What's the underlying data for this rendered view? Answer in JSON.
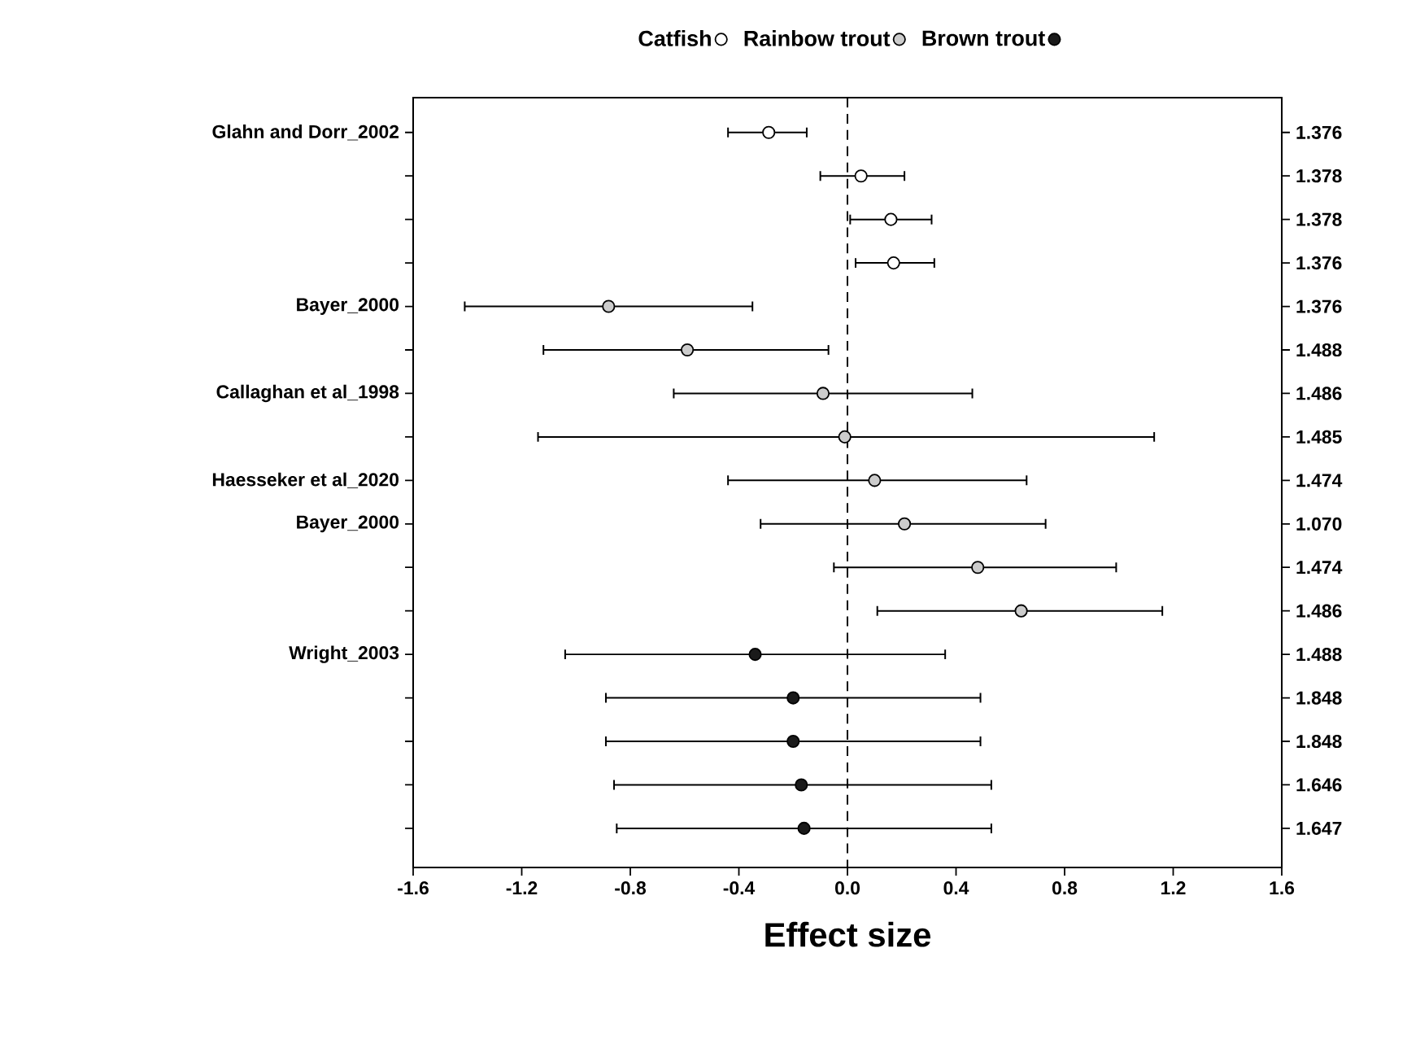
{
  "chart_data": {
    "type": "scatter",
    "orientation": "horizontal",
    "xlabel": "Effect size",
    "categories": [
      "Glahn and Dorr_2002",
      null,
      null,
      null,
      "Bayer_2000",
      null,
      "Callaghan et al_1998",
      null,
      "Haesseker et al_2020",
      "Bayer_2000",
      null,
      null,
      "Wright_2003",
      null,
      null,
      null,
      null
    ],
    "y2_categories": [
      "1.376",
      "1.378",
      "1.378",
      "1.376",
      "1.376",
      "1.488",
      "1.486",
      "1.485",
      "1.474",
      "1.070",
      "1.474",
      "1.486",
      "1.488",
      "1.848",
      "1.848",
      "1.646",
      "1.647"
    ],
    "series": [
      {
        "name": "Catfish",
        "color": "#ffffff",
        "values": [
          -0.29,
          0.05,
          0.16,
          0.17,
          null,
          null,
          null,
          null,
          null,
          null,
          null,
          null,
          null,
          null,
          null,
          null,
          null
        ],
        "errors": [
          [
            -0.44,
            -0.15
          ],
          [
            -0.1,
            0.21
          ],
          [
            0.01,
            0.31
          ],
          [
            0.03,
            0.32
          ],
          null,
          null,
          null,
          null,
          null,
          null,
          null,
          null,
          null,
          null,
          null,
          null,
          null
        ]
      },
      {
        "name": "Rainbow trout",
        "color": "#cccccc",
        "values": [
          null,
          null,
          null,
          null,
          -0.88,
          -0.59,
          -0.09,
          -0.01,
          0.1,
          0.21,
          0.48,
          0.64,
          null,
          null,
          null,
          null,
          null
        ],
        "errors": [
          null,
          null,
          null,
          null,
          [
            -1.41,
            -0.35
          ],
          [
            -1.12,
            -0.07
          ],
          [
            -0.64,
            0.46
          ],
          [
            -1.14,
            1.13
          ],
          [
            -0.44,
            0.66
          ],
          [
            -0.32,
            0.73
          ],
          [
            -0.05,
            0.99
          ],
          [
            0.11,
            1.16
          ],
          null,
          null,
          null,
          null,
          null
        ]
      },
      {
        "name": "Brown trout",
        "color": "#1a1a1a",
        "values": [
          null,
          null,
          null,
          null,
          null,
          null,
          null,
          null,
          null,
          null,
          null,
          null,
          -0.34,
          -0.2,
          -0.2,
          -0.17,
          -0.16
        ],
        "errors": [
          null,
          null,
          null,
          null,
          null,
          null,
          null,
          null,
          null,
          null,
          null,
          null,
          [
            -1.04,
            0.36
          ],
          [
            -0.89,
            0.49
          ],
          [
            -0.89,
            0.49
          ],
          [
            -0.86,
            0.53
          ],
          [
            -0.85,
            0.53
          ]
        ]
      }
    ],
    "xlim": [
      -1.6,
      1.6
    ],
    "xticks": [
      -1.6,
      -1.2,
      -0.8,
      -0.4,
      {
        "value": 0,
        "label": "0.0"
      },
      0.4,
      0.8,
      1.2,
      1.6
    ],
    "ref_lines": [
      {
        "axis": "x",
        "value": 0,
        "line_style": "dashed"
      }
    ],
    "legend": "top",
    "grid": false
  }
}
